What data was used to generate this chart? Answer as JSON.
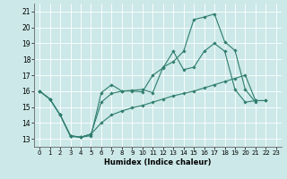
{
  "xlabel": "Humidex (Indice chaleur)",
  "bg_color": "#cce8e8",
  "grid_color": "#ffffff",
  "line_color": "#2e7d6e",
  "xlim": [
    -0.5,
    23.5
  ],
  "ylim": [
    12.5,
    21.5
  ],
  "xticks": [
    0,
    1,
    2,
    3,
    4,
    5,
    6,
    7,
    8,
    9,
    10,
    11,
    12,
    13,
    14,
    15,
    16,
    17,
    18,
    19,
    20,
    21,
    22,
    23
  ],
  "yticks": [
    13,
    14,
    15,
    16,
    17,
    18,
    19,
    20,
    21
  ],
  "line1_x": [
    0,
    1,
    2,
    3,
    4,
    5,
    6,
    7,
    8,
    9,
    10,
    11,
    12,
    13,
    14,
    15,
    16,
    17,
    18,
    19,
    20,
    21
  ],
  "line1_y": [
    16.0,
    15.5,
    14.5,
    13.2,
    13.1,
    13.2,
    15.9,
    16.4,
    16.0,
    16.05,
    16.1,
    15.9,
    17.5,
    17.85,
    18.5,
    20.5,
    20.65,
    20.85,
    19.1,
    18.55,
    16.1,
    15.3
  ],
  "line2_x": [
    0,
    1,
    2,
    3,
    4,
    5,
    6,
    7,
    8,
    9,
    10,
    11,
    12,
    13,
    14,
    15,
    16,
    17,
    18,
    19,
    20,
    21,
    22
  ],
  "line2_y": [
    16.0,
    15.5,
    14.5,
    13.2,
    13.1,
    13.3,
    15.3,
    15.85,
    16.0,
    16.0,
    15.95,
    17.0,
    17.45,
    18.5,
    17.35,
    17.5,
    18.5,
    19.0,
    18.5,
    16.1,
    15.3,
    15.4,
    15.4
  ],
  "line3_x": [
    0,
    1,
    2,
    3,
    4,
    5,
    6,
    7,
    8,
    9,
    10,
    11,
    12,
    13,
    14,
    15,
    16,
    17,
    18,
    19,
    20,
    21,
    22
  ],
  "line3_y": [
    16.0,
    15.5,
    14.5,
    13.15,
    13.1,
    13.3,
    14.0,
    14.5,
    14.75,
    14.95,
    15.1,
    15.3,
    15.5,
    15.7,
    15.85,
    16.0,
    16.2,
    16.4,
    16.6,
    16.8,
    17.0,
    15.4,
    15.4
  ]
}
